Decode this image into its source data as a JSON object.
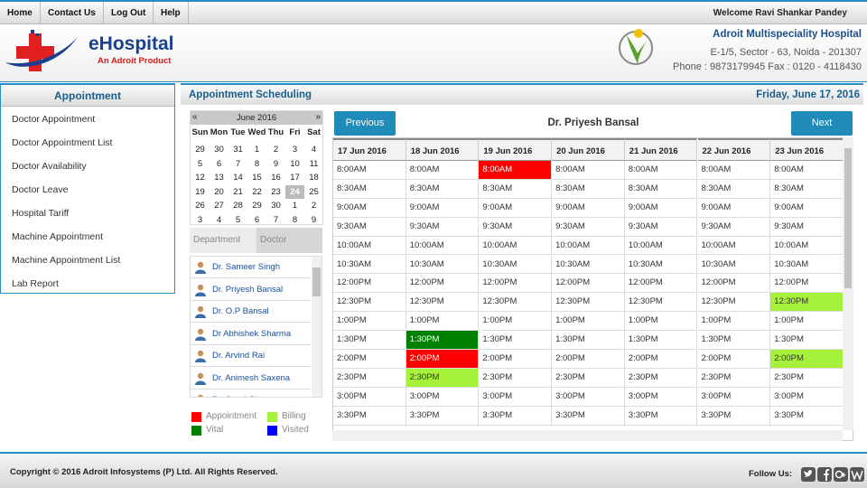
{
  "nav": {
    "links": [
      "Home",
      "Contact Us",
      "Log Out",
      "Help"
    ],
    "welcome": "Welcome Ravi Shankar Pandey"
  },
  "header": {
    "logo_title": "eHospital",
    "logo_tagline": "An Adroit Product",
    "hospital_name": "Adroit Multispeciality Hospital",
    "address": "E-1/5, Sector - 63, Noida - 201307",
    "contact": "Phone : 9873179945 Fax : 0120 - 4118430"
  },
  "sidebar": {
    "title": "Appointment",
    "items": [
      "Doctor Appointment",
      "Doctor Appointment List",
      "Doctor Availability",
      "Doctor Leave",
      "Hospital Tariff",
      "Machine Appointment",
      "Machine Appointment List",
      "Lab Report"
    ]
  },
  "main": {
    "title": "Appointment Scheduling",
    "date": "Friday, June 17, 2016"
  },
  "calendar": {
    "prev": "«",
    "month": "June 2016",
    "next": "»",
    "weekdays": [
      "Sun",
      "Mon",
      "Tue",
      "Wed",
      "Thu",
      "Fri",
      "Sat"
    ],
    "weeks": [
      [
        29,
        30,
        31,
        1,
        2,
        3,
        4
      ],
      [
        5,
        6,
        7,
        8,
        9,
        10,
        11
      ],
      [
        12,
        13,
        14,
        15,
        16,
        17,
        18
      ],
      [
        19,
        20,
        21,
        22,
        23,
        24,
        25
      ],
      [
        26,
        27,
        28,
        29,
        30,
        1,
        2
      ],
      [
        3,
        4,
        5,
        6,
        7,
        8,
        9
      ]
    ],
    "selected_day": 24
  },
  "tabs": [
    "Department",
    "Doctor"
  ],
  "doctors": [
    "Dr. Sameer Singh",
    "Dr. Priyesh Bansal",
    "Dr. O.P Bansal",
    "Dr Abhishek Sharma",
    "Dr. Arvind Rai",
    "Dr. Animesh Saxena",
    "Dr. Swati Sharma"
  ],
  "legend": [
    {
      "label": "Appointment",
      "color": "#ff0000"
    },
    {
      "label": "Billing",
      "color": "#a6f23a"
    },
    {
      "label": "Vital",
      "color": "#008000"
    },
    {
      "label": "Visited",
      "color": "#0000ff"
    }
  ],
  "schedule": {
    "previous": "Previous",
    "doctor": "Dr. Priyesh Bansal",
    "next": "Next",
    "dates": [
      "17 Jun 2016",
      "18 Jun 2016",
      "19 Jun 2016",
      "20 Jun 2016",
      "21 Jun 2016",
      "22 Jun 2016",
      "23 Jun 2016"
    ],
    "times": [
      "8:00AM",
      "8:30AM",
      "9:00AM",
      "9:30AM",
      "10:00AM",
      "10:30AM",
      "12:00PM",
      "12:30PM",
      "1:00PM",
      "1:30PM",
      "2:00PM",
      "2:30PM",
      "3:00PM",
      "3:30PM"
    ],
    "marked": [
      {
        "date": "19 Jun 2016",
        "time": "8:00AM",
        "status": "Appointment"
      },
      {
        "date": "18 Jun 2016",
        "time": "1:30PM",
        "status": "Vital"
      },
      {
        "date": "18 Jun 2016",
        "time": "2:00PM",
        "status": "Appointment"
      },
      {
        "date": "18 Jun 2016",
        "time": "2:30PM",
        "status": "Billing"
      },
      {
        "date": "23 Jun 2016",
        "time": "12:30PM",
        "status": "Billing"
      },
      {
        "date": "23 Jun 2016",
        "time": "2:00PM",
        "status": "Billing"
      }
    ]
  },
  "footer": {
    "copyright": "Copyright © 2016 Adroit Infosystems (P) Ltd. All Rights Reserved.",
    "follow": "Follow Us:"
  }
}
